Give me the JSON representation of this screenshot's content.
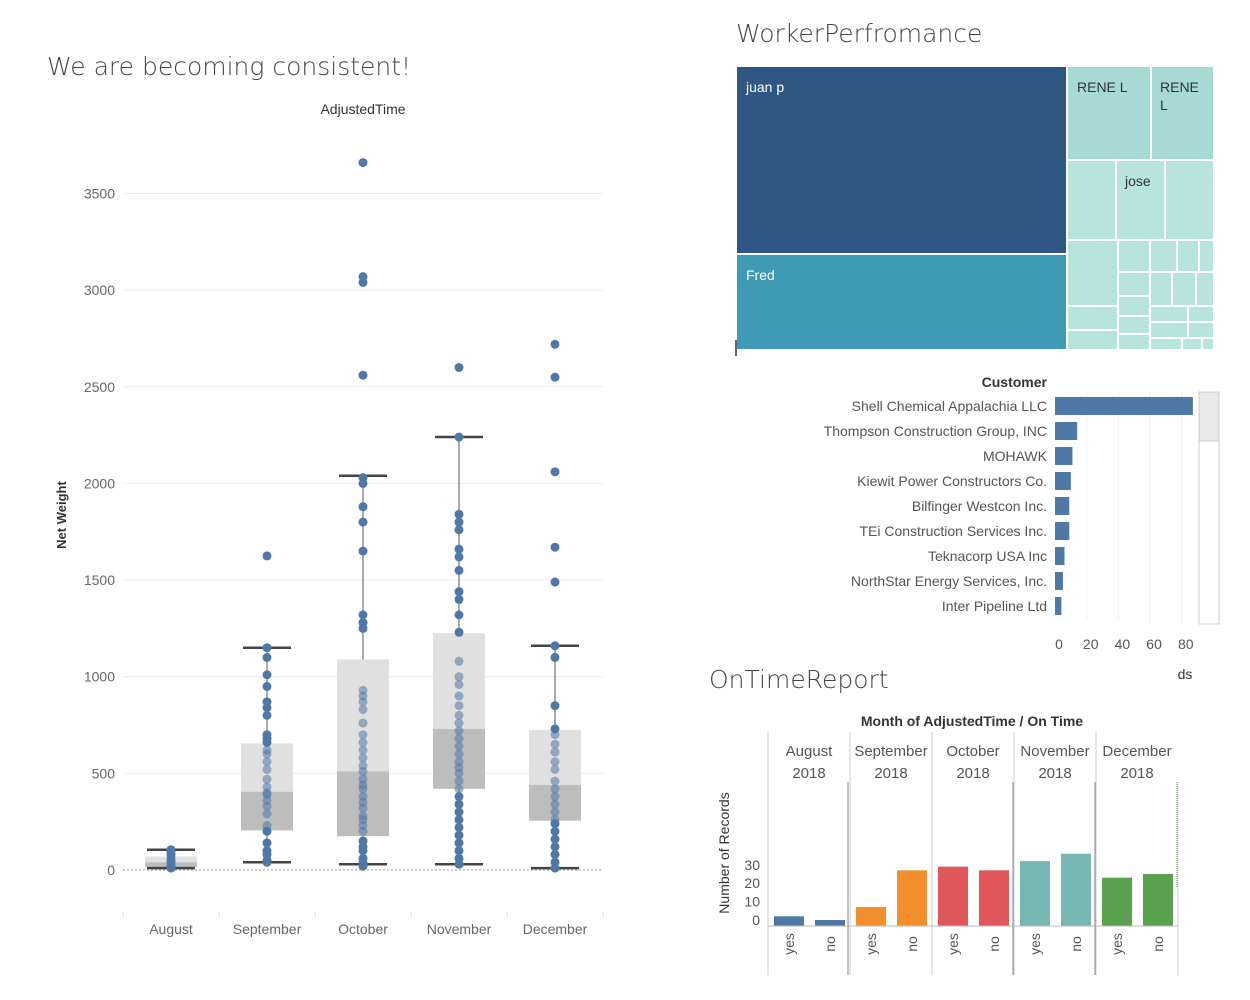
{
  "titles": {
    "boxplot": "We are becoming consistent!",
    "treemap": "WorkerPerfromance",
    "ontime": "OnTimeReport"
  },
  "colors": {
    "blue_dark": "#2e5883",
    "teal": "#3f9ab5",
    "light_teal": "#a7dad4",
    "pale_teal": "#b7e4dc",
    "point_blue": "#4e79a7",
    "box_light": "#e0e0e0",
    "box_dark": "#bdbdbd",
    "orange": "#f28e2b",
    "red": "#e15759",
    "green": "#59a14f",
    "bar_teal": "#76b7b2"
  },
  "chart_data": [
    {
      "type": "box",
      "name": "boxplot",
      "title": "We are becoming consistent!",
      "header": "AdjustedTime",
      "xlabel": "",
      "ylabel": "Net Weight",
      "ylim": [
        -230,
        3800
      ],
      "yticks": [
        0,
        500,
        1000,
        1500,
        2000,
        2500,
        3000,
        3500
      ],
      "categories": [
        "August",
        "September",
        "October",
        "November",
        "December"
      ],
      "boxes": [
        {
          "label": "August",
          "whisker_low": 10,
          "q1": 15,
          "median": 40,
          "q3": 70,
          "whisker_high": 105,
          "points": [
            10,
            15,
            20,
            25,
            30,
            35,
            40,
            45,
            50,
            55,
            60,
            70,
            80,
            95,
            105
          ]
        },
        {
          "label": "September",
          "whisker_low": 40,
          "q1": 205,
          "median": 405,
          "q3": 655,
          "whisker_high": 1150,
          "points": [
            40,
            50,
            80,
            100,
            140,
            200,
            230,
            290,
            330,
            360,
            390,
            400,
            430,
            470,
            520,
            560,
            600,
            620,
            660,
            680,
            700,
            800,
            840,
            870,
            950,
            1010,
            1100,
            1150,
            1625
          ]
        },
        {
          "label": "October",
          "whisker_low": 30,
          "q1": 175,
          "median": 510,
          "q3": 1090,
          "whisker_high": 2040,
          "points": [
            20,
            40,
            60,
            100,
            120,
            150,
            200,
            230,
            260,
            280,
            320,
            350,
            380,
            420,
            440,
            470,
            510,
            540,
            580,
            620,
            660,
            700,
            760,
            830,
            870,
            900,
            930,
            1250,
            1280,
            1320,
            1650,
            1800,
            1880,
            2000,
            2030,
            2560,
            3040,
            3070,
            3660
          ]
        },
        {
          "label": "November",
          "whisker_low": 30,
          "q1": 420,
          "median": 730,
          "q3": 1225,
          "whisker_high": 2240,
          "points": [
            30,
            60,
            100,
            140,
            180,
            220,
            260,
            300,
            340,
            380,
            420,
            460,
            500,
            530,
            560,
            600,
            640,
            680,
            720,
            760,
            800,
            850,
            900,
            960,
            1000,
            1080,
            1230,
            1320,
            1400,
            1440,
            1550,
            1620,
            1660,
            1760,
            1800,
            1840,
            2240,
            2600
          ]
        },
        {
          "label": "December",
          "whisker_low": 10,
          "q1": 255,
          "median": 440,
          "q3": 725,
          "whisker_high": 1160,
          "points": [
            10,
            40,
            80,
            120,
            160,
            200,
            240,
            260,
            300,
            340,
            380,
            420,
            460,
            520,
            560,
            610,
            650,
            700,
            730,
            850,
            1100,
            1160,
            1490,
            1670,
            2060,
            2550,
            2720
          ]
        }
      ]
    },
    {
      "type": "treemap",
      "name": "treemap",
      "title": "WorkerPerfromance",
      "labels": [
        "juan p",
        "Fred",
        "RENE L",
        "RENE L",
        "jose"
      ]
    },
    {
      "type": "bar",
      "name": "customer-bar",
      "orientation": "horizontal",
      "header": "Customer",
      "xlabel": "ds",
      "xlim": [
        0,
        95
      ],
      "xticks": [
        0,
        20,
        40,
        60,
        80
      ],
      "categories": [
        "Shell Chemical Appalachia LLC",
        "Thompson Construction Group, INC",
        "MOHAWK",
        "Kiewit Power Constructors Co.",
        "Bilfinger Westcon Inc.",
        "TEi Construction Services Inc.",
        "Teknacorp USA Inc",
        "NorthStar Energy Services, Inc.",
        "Inter Pipeline Ltd"
      ],
      "values": [
        87,
        14,
        11,
        10,
        9,
        9,
        6,
        5,
        4
      ]
    },
    {
      "type": "bar",
      "name": "ontime-bar",
      "title": "OnTimeReport",
      "header": "Month of AdjustedTime  /  On Time",
      "ylabel": "Number of Records",
      "ylim": [
        -4,
        38
      ],
      "yticks": [
        0,
        10,
        20,
        30
      ],
      "groups": [
        {
          "month": "August",
          "year": "2018",
          "color": "#4e79a7",
          "bars": [
            {
              "label": "yes",
              "value": 2
            },
            {
              "label": "no",
              "value": 0
            }
          ]
        },
        {
          "month": "September",
          "year": "2018",
          "color": "#f28e2b",
          "bars": [
            {
              "label": "yes",
              "value": 7
            },
            {
              "label": "no",
              "value": 27
            }
          ]
        },
        {
          "month": "October",
          "year": "2018",
          "color": "#e15759",
          "bars": [
            {
              "label": "yes",
              "value": 29
            },
            {
              "label": "no",
              "value": 27
            }
          ]
        },
        {
          "month": "November",
          "year": "2018",
          "color": "#76b7b2",
          "bars": [
            {
              "label": "yes",
              "value": 32
            },
            {
              "label": "no",
              "value": 36
            }
          ]
        },
        {
          "month": "December",
          "year": "2018",
          "color": "#59a14f",
          "bars": [
            {
              "label": "yes",
              "value": 23
            },
            {
              "label": "no",
              "value": 25
            }
          ]
        }
      ]
    }
  ]
}
